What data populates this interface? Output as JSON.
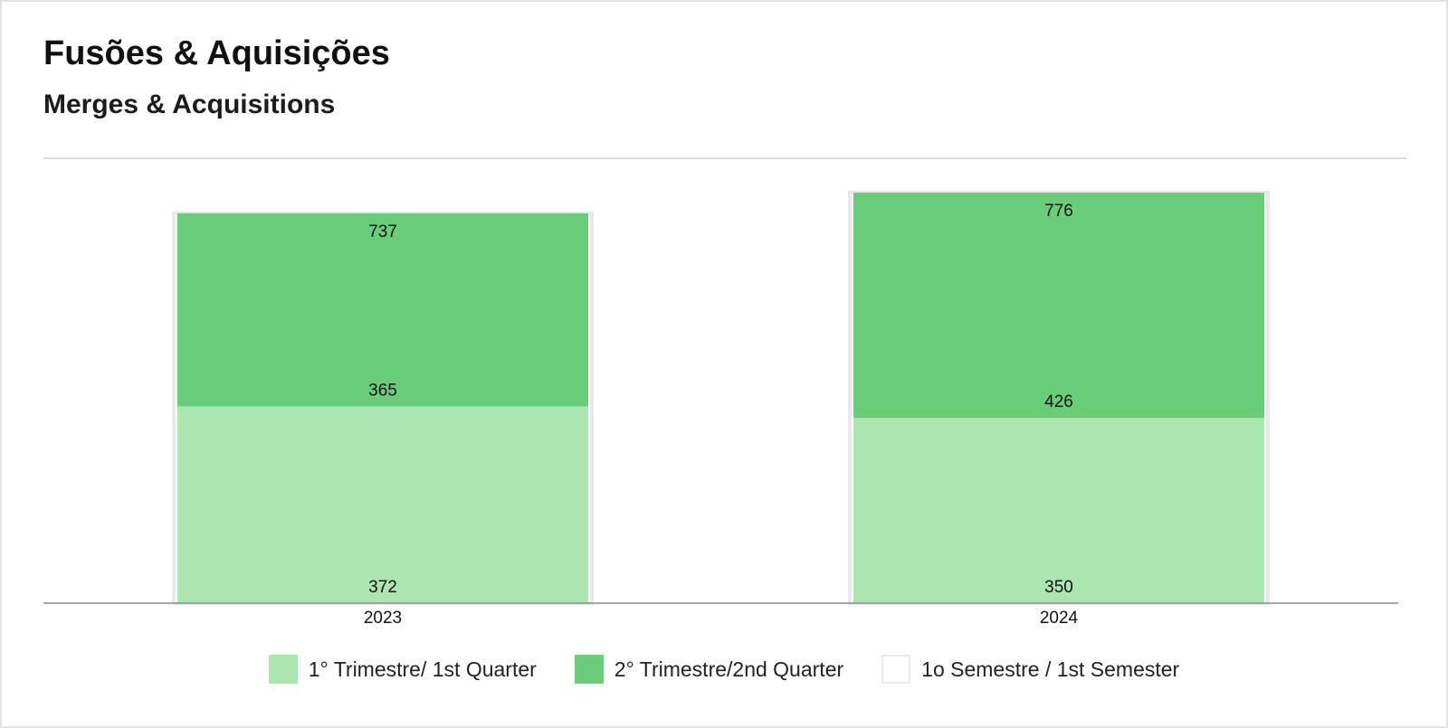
{
  "title": "Fusões & Aquisições",
  "subtitle": "Merges & Acquisitions",
  "chart_data": {
    "type": "bar",
    "stacked": true,
    "categories": [
      "2023",
      "2024"
    ],
    "series": [
      {
        "name": "1° Trimestre/ 1st Quarter",
        "values": [
          372,
          350
        ],
        "color": "#abe6b0"
      },
      {
        "name": "2° Trimestre/2nd Quarter",
        "values": [
          365,
          426
        ],
        "color": "#6acd79"
      }
    ],
    "totals": {
      "name": "1o Semestre / 1st Semester",
      "values": [
        737,
        776
      ],
      "color": "#ffffff",
      "border": "#e9e9e9"
    },
    "ylim": [
      0,
      776
    ],
    "grid": false,
    "legend": "bottom"
  }
}
